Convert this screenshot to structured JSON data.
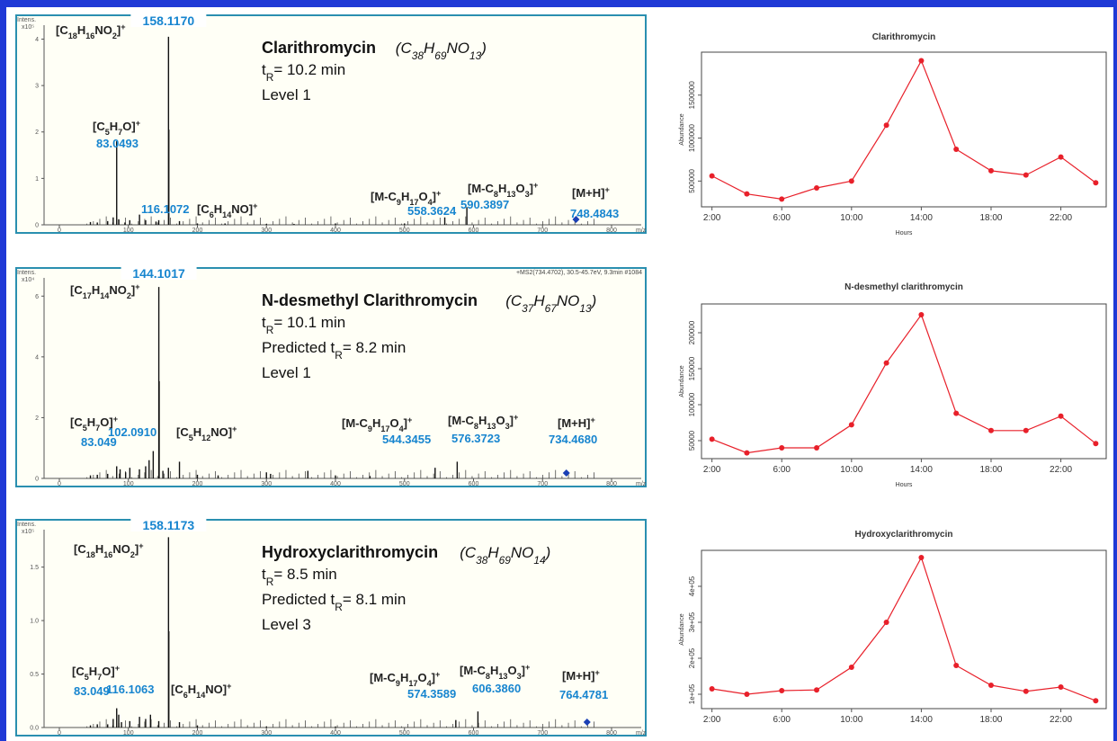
{
  "spectra": [
    {
      "compound": "Clarithromycin",
      "formula": "(C38H69NO13)",
      "rt": "tR=  10.2 min",
      "predicted": "",
      "level": "Level 1",
      "intens_label": "Intens.",
      "scale": "x10⁵",
      "yticks": [
        "4",
        "3",
        "2",
        "1",
        "0"
      ],
      "ymax": 4.3,
      "top_peak": "158.1170",
      "extra_info": "",
      "frag_top": "[C18H16NO2]+",
      "frag_c5": "[C5H7O]+",
      "frag_c5_mz": "83.0493",
      "frag_mid_mz": "116.1072",
      "frag_mid": "[C6H14NO]+",
      "frag_c9": "[M-C9H17O4]+",
      "frag_c9_mz": "558.3624",
      "frag_c8": "[M-C8H13O3]+",
      "frag_c8_mz": "590.3897",
      "frag_mh": "[M+H]+",
      "frag_mh_mz": "748.4843",
      "peaks": [
        [
          45,
          0.06
        ],
        [
          55,
          0.05
        ],
        [
          70,
          0.08
        ],
        [
          78,
          0.16
        ],
        [
          83.05,
          1.8
        ],
        [
          86,
          0.12
        ],
        [
          95,
          0.05
        ],
        [
          102,
          0.1
        ],
        [
          116.11,
          0.22
        ],
        [
          125,
          0.1
        ],
        [
          140,
          0.07
        ],
        [
          144,
          0.1
        ],
        [
          158.12,
          4.05
        ],
        [
          158.6,
          2.05
        ],
        [
          174,
          0.08
        ],
        [
          200,
          0.03
        ],
        [
          240,
          0.03
        ],
        [
          300,
          0.02
        ],
        [
          340,
          0.02
        ],
        [
          400,
          0.03
        ],
        [
          500,
          0.03
        ],
        [
          558.36,
          0.16
        ],
        [
          590.39,
          0.38
        ]
      ],
      "precursor_mz": 748.48
    },
    {
      "compound": "N-desmethyl Clarithromycin",
      "formula": "(C37H67NO13)",
      "rt": "tR=  10.1 min",
      "predicted": "Predicted tR=  8.2 min",
      "level": "Level 1",
      "intens_label": "Intens.",
      "scale": "x10⁴",
      "yticks": [
        "6",
        "4",
        "2",
        "0"
      ],
      "ymax": 6.6,
      "top_peak": "144.1017",
      "extra_info": "+MS2(734.4702), 30.5-45.7eV, 9.3min #1084",
      "frag_top": "[C17H14NO2]+",
      "frag_c5": "[C5H7O]+",
      "frag_c5_mz": "83.049",
      "frag_mid_mz": "102.0910",
      "frag_mid": "[C5H12NO]+",
      "frag_c9": "[M-C9H17O4]+",
      "frag_c9_mz": "544.3455",
      "frag_c8": "[M-C8H13O3]+",
      "frag_c8_mz": "576.3723",
      "frag_mh": "[M+H]+",
      "frag_mh_mz": "734.4680",
      "peaks": [
        [
          45,
          0.1
        ],
        [
          55,
          0.12
        ],
        [
          70,
          0.15
        ],
        [
          83.05,
          0.4
        ],
        [
          88,
          0.3
        ],
        [
          96,
          0.2
        ],
        [
          102.09,
          0.35
        ],
        [
          116,
          0.3
        ],
        [
          125,
          0.4
        ],
        [
          130,
          0.6
        ],
        [
          136,
          0.9
        ],
        [
          144.1,
          6.3
        ],
        [
          144.6,
          3.2
        ],
        [
          150,
          0.25
        ],
        [
          158,
          0.35
        ],
        [
          174,
          0.55
        ],
        [
          200,
          0.12
        ],
        [
          230,
          0.1
        ],
        [
          300,
          0.2
        ],
        [
          306,
          0.15
        ],
        [
          360,
          0.25
        ],
        [
          400,
          0.1
        ],
        [
          450,
          0.08
        ],
        [
          544.35,
          0.35
        ],
        [
          576.37,
          0.55
        ]
      ],
      "precursor_mz": 734.47
    },
    {
      "compound": "Hydroxyclarithromycin",
      "formula": "(C38H69NO14)",
      "rt": "tR=  8.5 min",
      "predicted": "Predicted tR= 8.1 min",
      "level": "Level 3",
      "intens_label": "Intens.",
      "scale": "x10⁵",
      "yticks": [
        "1.5",
        "1.0",
        "0.5",
        "0.0"
      ],
      "ymax": 1.85,
      "top_peak": "158.1173",
      "extra_info": "",
      "frag_top": "[C18H16NO2]+",
      "frag_c5": "[C5H7O]+",
      "frag_c5_mz": "83.049",
      "frag_mid_mz": "116.1063",
      "frag_mid": "[C6H14NO]+",
      "frag_c9": "[M-C9H17O4]+",
      "frag_c9_mz": "574.3589",
      "frag_c8": "[M-C8H13O3]+",
      "frag_c8_mz": "606.3860",
      "frag_mh": "[M+H]+",
      "frag_mh_mz": "764.4781",
      "peaks": [
        [
          45,
          0.02
        ],
        [
          55,
          0.03
        ],
        [
          70,
          0.03
        ],
        [
          78,
          0.08
        ],
        [
          83.05,
          0.18
        ],
        [
          86,
          0.12
        ],
        [
          90,
          0.05
        ],
        [
          102,
          0.06
        ],
        [
          116.11,
          0.1
        ],
        [
          125,
          0.08
        ],
        [
          132,
          0.12
        ],
        [
          144,
          0.06
        ],
        [
          158.12,
          1.78
        ],
        [
          158.6,
          0.9
        ],
        [
          174,
          0.05
        ],
        [
          200,
          0.02
        ],
        [
          300,
          0.01
        ],
        [
          400,
          0.01
        ],
        [
          574.36,
          0.07
        ],
        [
          606.39,
          0.15
        ]
      ],
      "precursor_mz": 764.48
    }
  ],
  "xticks_spec": [
    "0",
    "100",
    "200",
    "300",
    "400",
    "500",
    "600",
    "700",
    "800"
  ],
  "mz_label": "m/z",
  "trends": [
    {
      "title": "Clarithromycin",
      "ylabel": "Abundance",
      "xlabel": "Hours",
      "yticks": [
        500000,
        1000000,
        1500000
      ],
      "ytick_labels": [
        "500000",
        "1000000",
        "1500000"
      ],
      "ylim": [
        200000,
        2000000
      ]
    },
    {
      "title": "N-desmethyl clarithromycin",
      "ylabel": "Abundance",
      "xlabel": "Hours",
      "yticks": [
        50000,
        100000,
        150000,
        200000
      ],
      "ytick_labels": [
        "50000",
        "100000",
        "150000",
        "200000"
      ],
      "ylim": [
        25000,
        240000
      ]
    },
    {
      "title": "Hydroxyclarithromycin",
      "ylabel": "Abundance",
      "xlabel": "",
      "yticks": [
        100000,
        200000,
        300000,
        400000
      ],
      "ytick_labels": [
        "1e+05",
        "2e+05",
        "3e+05",
        "4e+05"
      ],
      "ylim": [
        60000,
        500000
      ]
    }
  ],
  "trend_xticks": [
    "2:00",
    "6:00",
    "10:00",
    "14:00",
    "18:00",
    "22:00"
  ],
  "chart_data": [
    {
      "type": "line",
      "title": "Clarithromycin",
      "xlabel": "Hours",
      "ylabel": "Abundance",
      "x": [
        2,
        4,
        6,
        8,
        10,
        12,
        14,
        16,
        18,
        20,
        22,
        24
      ],
      "series": [
        {
          "values": [
            560000,
            350000,
            290000,
            420000,
            500000,
            1150000,
            1900000,
            870000,
            620000,
            570000,
            780000,
            480000
          ]
        }
      ],
      "color": "#e8202a",
      "grid": false
    },
    {
      "type": "line",
      "title": "N-desmethyl clarithromycin",
      "xlabel": "Hours",
      "ylabel": "Abundance",
      "x": [
        2,
        4,
        6,
        8,
        10,
        12,
        14,
        16,
        18,
        20,
        22,
        24
      ],
      "series": [
        {
          "values": [
            52000,
            33000,
            40000,
            40000,
            72000,
            158000,
            225000,
            88000,
            64000,
            64000,
            84000,
            46000
          ]
        }
      ],
      "color": "#e8202a",
      "grid": false
    },
    {
      "type": "line",
      "title": "Hydroxyclarithromycin",
      "xlabel": "",
      "ylabel": "Abundance",
      "x": [
        2,
        4,
        6,
        8,
        10,
        12,
        14,
        16,
        18,
        20,
        22,
        24
      ],
      "series": [
        {
          "values": [
            115000,
            100000,
            110000,
            112000,
            175000,
            300000,
            480000,
            180000,
            125000,
            108000,
            120000,
            82000
          ]
        }
      ],
      "color": "#e8202a",
      "grid": false
    }
  ]
}
